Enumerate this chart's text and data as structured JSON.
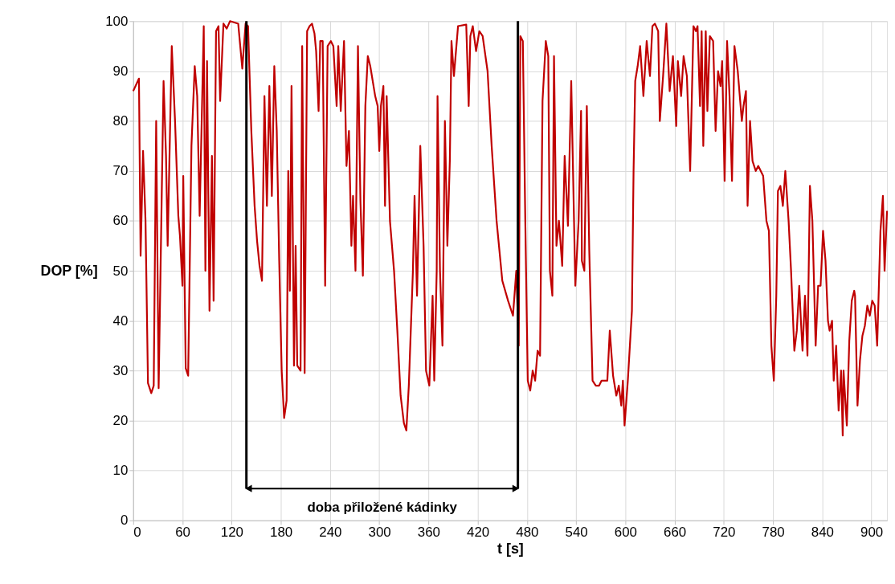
{
  "chart_data": {
    "type": "line",
    "xlabel": "t [s]",
    "ylabel": "DOP [%]",
    "xlim": [
      0,
      919
    ],
    "ylim": [
      0,
      100
    ],
    "xticks": [
      0,
      60,
      120,
      180,
      240,
      300,
      360,
      420,
      480,
      540,
      600,
      660,
      720,
      780,
      840,
      900
    ],
    "yticks": [
      0,
      10,
      20,
      30,
      40,
      50,
      60,
      70,
      80,
      90,
      100
    ],
    "grid": true,
    "marker": "none",
    "line_style": "solid",
    "ref_lines": [
      {
        "axis": "x",
        "value": 138,
        "label": null,
        "color": "#000000"
      },
      {
        "axis": "x",
        "value": 469,
        "label": null,
        "color": "#000000"
      }
    ],
    "annotations": [
      "doba přiložené kádinky"
    ],
    "series": [
      {
        "color": "#c00000",
        "x": [
          0,
          7,
          9,
          12,
          15,
          18,
          22,
          25,
          28,
          31,
          37,
          40,
          42,
          47,
          51,
          55,
          57,
          60,
          61,
          64,
          67,
          71,
          75,
          78,
          81,
          86,
          88,
          90,
          93,
          96,
          98,
          101,
          104,
          106,
          110,
          114,
          118,
          128,
          133,
          137,
          140,
          144,
          148,
          151,
          154,
          157,
          160,
          163,
          166,
          169,
          172,
          175,
          178,
          181,
          184,
          187,
          189,
          191,
          193,
          196,
          198,
          200,
          204,
          206,
          209,
          212,
          215,
          218,
          221,
          223,
          226,
          228,
          231,
          234,
          237,
          241,
          244,
          248,
          250,
          253,
          257,
          260,
          263,
          266,
          268,
          271,
          274,
          277,
          280,
          283,
          286,
          289,
          295,
          298,
          300,
          302,
          305,
          307,
          309,
          313,
          318,
          322,
          326,
          330,
          333,
          336,
          341,
          343,
          346,
          350,
          354,
          357,
          361,
          365,
          367,
          370,
          371,
          374,
          377,
          380,
          383,
          386,
          388,
          391,
          396,
          406,
          409,
          411,
          414,
          418,
          422,
          426,
          432,
          437,
          443,
          450,
          457,
          463,
          467,
          470,
          472,
          475,
          478,
          481,
          484,
          487,
          490,
          493,
          496,
          499,
          503,
          506,
          508,
          511,
          513,
          516,
          519,
          523,
          526,
          530,
          534,
          539,
          543,
          546,
          547,
          550,
          553,
          556,
          560,
          564,
          568,
          571,
          578,
          581,
          585,
          589,
          592,
          595,
          597,
          599,
          603,
          608,
          610,
          612,
          615,
          618,
          622,
          626,
          630,
          633,
          636,
          640,
          642,
          646,
          650,
          654,
          658,
          662,
          664,
          668,
          671,
          675,
          679,
          683,
          686,
          688,
          691,
          693,
          695,
          698,
          700,
          703,
          707,
          710,
          713,
          716,
          718,
          721,
          724,
          727,
          730,
          733,
          737,
          742,
          744,
          747,
          749,
          752,
          755,
          759,
          762,
          765,
          768,
          772,
          775,
          778,
          781,
          784,
          786,
          789,
          792,
          795,
          799,
          802,
          806,
          809,
          812,
          814,
          816,
          819,
          822,
          825,
          828,
          832,
          835,
          838,
          841,
          844,
          847,
          849,
          852,
          854,
          857,
          860,
          863,
          865,
          866,
          870,
          873,
          876,
          879,
          880,
          883,
          886,
          889,
          892,
          895,
          898,
          901,
          904,
          907,
          911,
          914,
          916,
          919
        ],
        "values": [
          86,
          88.5,
          53,
          74,
          60,
          27.5,
          25.5,
          27,
          80,
          26.5,
          88,
          73,
          55,
          95,
          80,
          61,
          57,
          47,
          69,
          30.5,
          29,
          75,
          91,
          85,
          61,
          99,
          50,
          92,
          42,
          73,
          44,
          98,
          99,
          84,
          99.5,
          98.5,
          100,
          99.5,
          90.5,
          99.5,
          99,
          78,
          63,
          56,
          51,
          48,
          85,
          63,
          87,
          65,
          91,
          78,
          52,
          30,
          20.5,
          24,
          70,
          46,
          87,
          31,
          55,
          31,
          30,
          95,
          29.5,
          98,
          99,
          99.5,
          97.5,
          94,
          82,
          96,
          96,
          47,
          95,
          96,
          95,
          83,
          95,
          82,
          96,
          71,
          78,
          55,
          65,
          50,
          95,
          64,
          49,
          83,
          93,
          91,
          85,
          83,
          74,
          83,
          87,
          63,
          85,
          60,
          50,
          38,
          25,
          19.5,
          18,
          27,
          50,
          65,
          45,
          75,
          55,
          30,
          27,
          45,
          28,
          50,
          85,
          50,
          35,
          80,
          55,
          72,
          96,
          89,
          99,
          99.3,
          83,
          97,
          99,
          94,
          98,
          97,
          90,
          75,
          60,
          48,
          44,
          41,
          50,
          35,
          97,
          96,
          60,
          28,
          26,
          30,
          28,
          34,
          33,
          84,
          96,
          93,
          50,
          45,
          93,
          55,
          60,
          51,
          73,
          59,
          88,
          47,
          60,
          82,
          52,
          50,
          83,
          54,
          28,
          27,
          27,
          28,
          28,
          38,
          29,
          25,
          27,
          23,
          28,
          19,
          28,
          42,
          70,
          88,
          91,
          95,
          85,
          96,
          89,
          99,
          99.5,
          98,
          80,
          89,
          99.5,
          86,
          93,
          79,
          92,
          85,
          93,
          89,
          70,
          99,
          98,
          99,
          83,
          98,
          75,
          98,
          82,
          97,
          96,
          78,
          90,
          87,
          92,
          68,
          96,
          85,
          68,
          95,
          90,
          80,
          83,
          86,
          63,
          80,
          72,
          70,
          71,
          70,
          69,
          60,
          58,
          35,
          28,
          45,
          66,
          67,
          63,
          70,
          60,
          50,
          34,
          38,
          47,
          40,
          34,
          45,
          33,
          67,
          60,
          35,
          47,
          47,
          58,
          52,
          40,
          38,
          40,
          28,
          35,
          22,
          30,
          17,
          30,
          19,
          36,
          44,
          46,
          45,
          23,
          32,
          37,
          39,
          43,
          41,
          44,
          43,
          35,
          58,
          65,
          50,
          62
        ]
      }
    ]
  }
}
